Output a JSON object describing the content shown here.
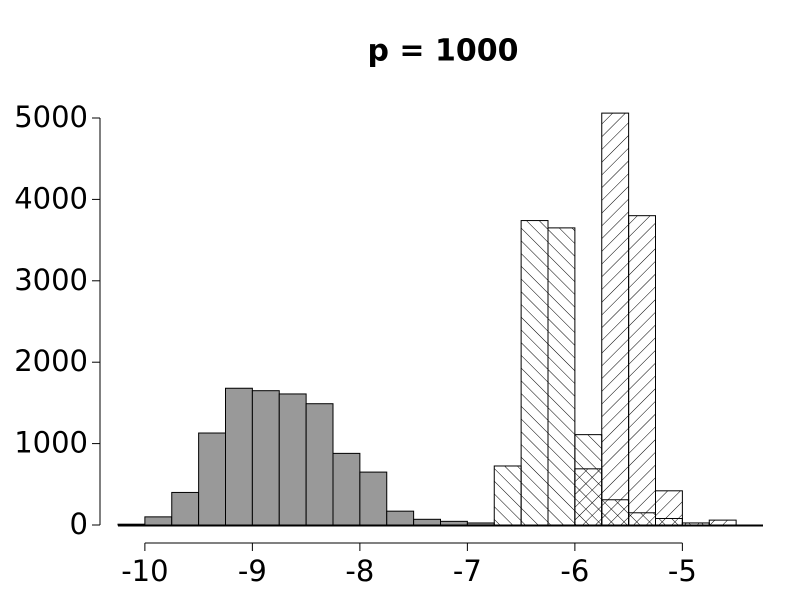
{
  "chart_data": {
    "type": "histogram",
    "title": "p = 1000",
    "bins": [
      -10.25,
      -10,
      -9.75,
      -9.5,
      -9.25,
      -9,
      -8.75,
      -8.5,
      -8.25,
      -8,
      -7.75,
      -7.5,
      -7.25,
      -7,
      -6.75,
      -6.5,
      -6.25,
      -6,
      -5.75,
      -5.5,
      -5.25,
      -5,
      -4.75,
      -4.5
    ],
    "series": [
      {
        "color": "#999999",
        "pattern": "solid",
        "values": [
          10,
          100,
          400,
          1130,
          1680,
          1650,
          1610,
          1490,
          880,
          650,
          170,
          70,
          45,
          25,
          0,
          0,
          0,
          0,
          0,
          0,
          0,
          0,
          0
        ]
      },
      {
        "color": "#ffffff",
        "pattern": "backslash",
        "values": [
          0,
          0,
          0,
          0,
          0,
          0,
          0,
          0,
          0,
          0,
          0,
          0,
          0,
          0,
          725,
          3740,
          3650,
          1110,
          310,
          150,
          80,
          25,
          0
        ]
      },
      {
        "color": "#ffffff",
        "pattern": "slash",
        "values": [
          0,
          0,
          0,
          0,
          0,
          0,
          0,
          0,
          0,
          0,
          0,
          0,
          0,
          0,
          0,
          0,
          0,
          690,
          5060,
          3800,
          420,
          25,
          60
        ]
      }
    ],
    "xlim": [
      -10.25,
      -4.25
    ],
    "xticks": [
      -10,
      -9,
      -8,
      -7,
      -6,
      -5
    ],
    "ylim": [
      0,
      5000
    ],
    "yticks": [
      0,
      1000,
      2000,
      3000,
      4000,
      5000
    ]
  }
}
